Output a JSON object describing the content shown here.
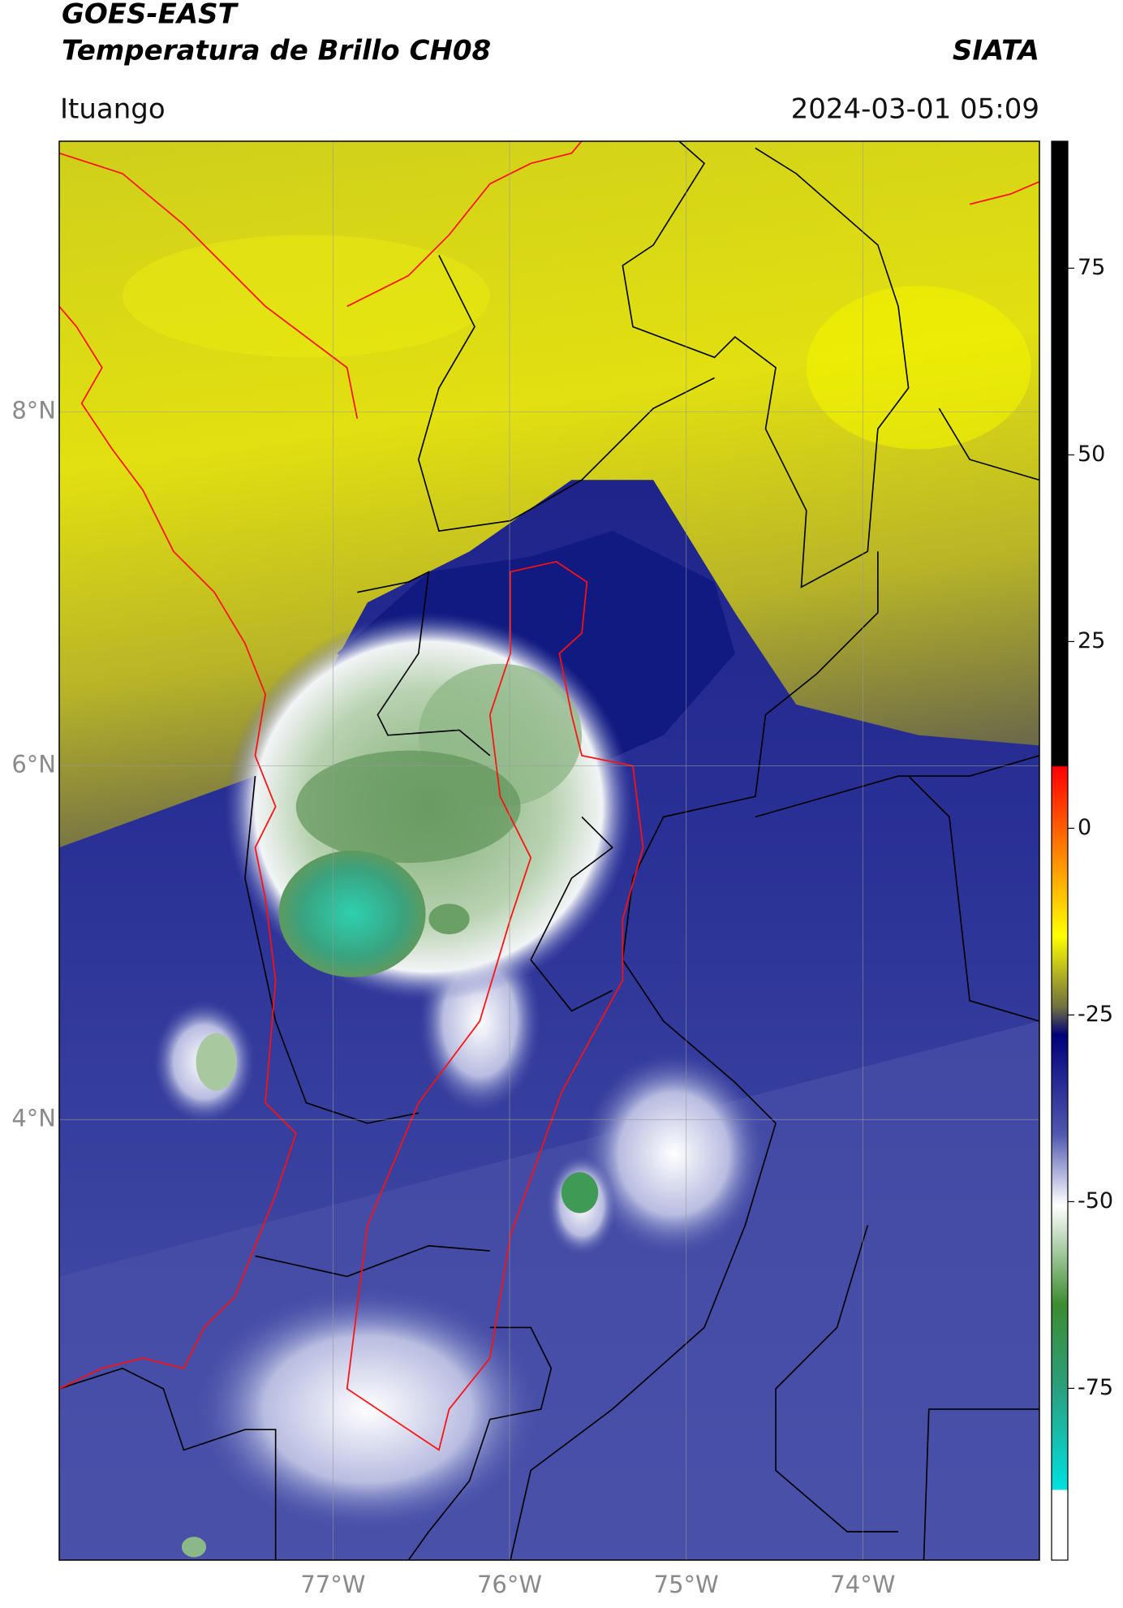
{
  "header": {
    "title": "GOES-EAST",
    "subtitle": "Temperatura de Brillo CH08",
    "source": "SIATA",
    "location": "Ituango",
    "datetime": "2024-03-01 05:09"
  },
  "map": {
    "lonlim": [
      -78.55,
      -73.0
    ],
    "latlim": [
      1.51,
      9.53
    ],
    "lat_ticks": [
      {
        "value": 8,
        "label": "8°N"
      },
      {
        "value": 6,
        "label": "6°N"
      },
      {
        "value": 4,
        "label": "4°N"
      }
    ],
    "lon_ticks": [
      {
        "value": -77,
        "label": "77°W"
      },
      {
        "value": -76,
        "label": "76°W"
      },
      {
        "value": -75,
        "label": "75°W"
      },
      {
        "value": -74,
        "label": "74°W"
      }
    ]
  },
  "colorbar": {
    "lim": [
      -98,
      92
    ],
    "ticks": [
      75,
      50,
      25,
      0,
      -25,
      -50,
      -75
    ]
  }
}
